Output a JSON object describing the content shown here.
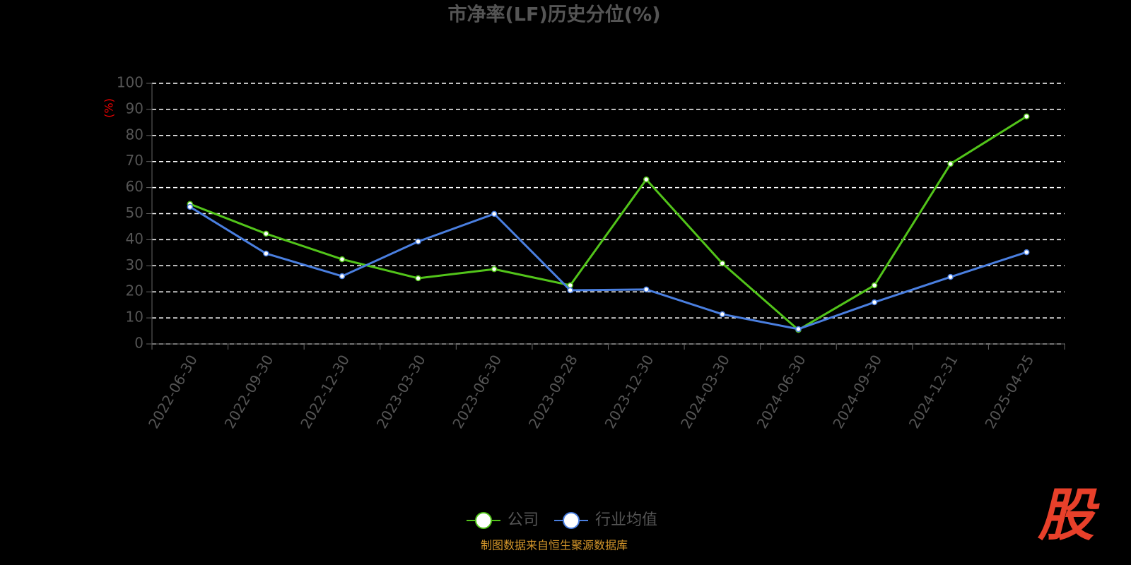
{
  "chart_data": {
    "type": "line",
    "title": "市净率(LF)历史分位(%)",
    "y_label": "(%)",
    "categories": [
      "2022-06-30",
      "2022-09-30",
      "2022-12-30",
      "2023-03-30",
      "2023-06-30",
      "2023-09-28",
      "2023-12-30",
      "2024-03-30",
      "2024-06-30",
      "2024-09-30",
      "2024-12-31",
      "2025-04-25"
    ],
    "series": [
      {
        "name": "公司",
        "color": "#52c41a",
        "values": [
          53.7,
          42.3,
          32.5,
          25.2,
          28.7,
          22.5,
          63.1,
          30.9,
          5.4,
          22.5,
          69.1,
          87.3
        ]
      },
      {
        "name": "行业均值",
        "color": "#4a7fe0",
        "values": [
          52.6,
          34.7,
          26.0,
          39.3,
          49.9,
          20.6,
          20.9,
          11.4,
          5.7,
          16.0,
          25.7,
          35.2
        ]
      }
    ],
    "ylim": [
      0,
      100
    ],
    "yticks": [
      0,
      10,
      20,
      30,
      40,
      50,
      60,
      70,
      80,
      90,
      100
    ],
    "grid": true,
    "source": "制图数据来自恒生聚源数据库",
    "logo": "股"
  }
}
